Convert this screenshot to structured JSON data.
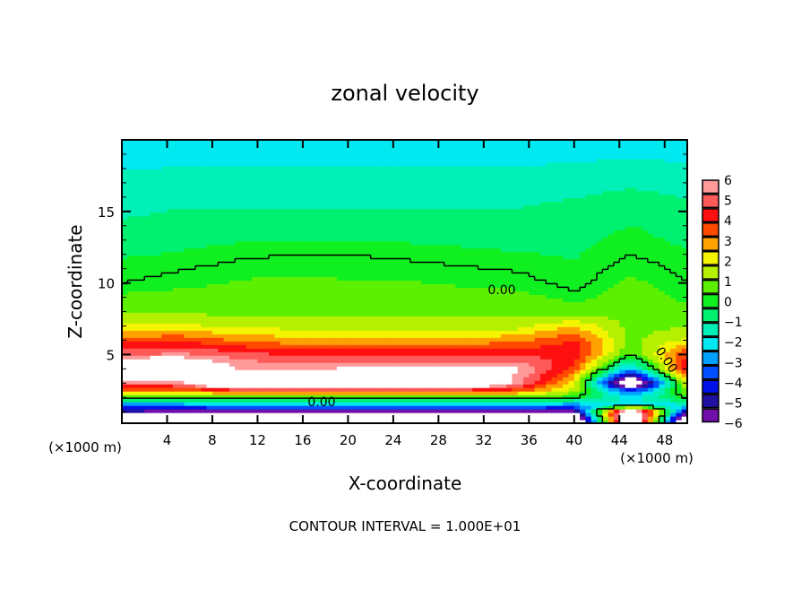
{
  "chart_data": {
    "type": "heatmap",
    "title": "zonal velocity",
    "xlabel": "X-coordinate",
    "ylabel": "Z-coordinate",
    "x_unit": "(×1000 m)",
    "y_unit": "(×1000 m)",
    "footer": "CONTOUR INTERVAL = 1.000E+01",
    "xlim": [
      0,
      50
    ],
    "ylim": [
      0.2,
      20
    ],
    "x_ticks": [
      "4",
      "8",
      "12",
      "16",
      "20",
      "24",
      "28",
      "32",
      "36",
      "40",
      "44",
      "48"
    ],
    "x_tick_values": [
      4,
      8,
      12,
      16,
      20,
      24,
      28,
      32,
      36,
      40,
      44,
      48
    ],
    "y_ticks": [
      "5",
      "10",
      "15"
    ],
    "y_tick_values": [
      5,
      10,
      15
    ],
    "colorbar": {
      "ticks": [
        "6",
        "5",
        "4",
        "3",
        "2",
        "1",
        "0",
        "−1",
        "−2",
        "−3",
        "−4",
        "−5",
        "−6"
      ],
      "range": [
        -6,
        6
      ],
      "colors": [
        "#ff9a9a",
        "#ff5a5a",
        "#ff1010",
        "#ff4a00",
        "#ffa200",
        "#f4f400",
        "#b4f000",
        "#5cf000",
        "#10f020",
        "#00f070",
        "#00f0b8",
        "#00e8f0",
        "#00a0ff",
        "#0050ff",
        "#0010e8",
        "#2010a0",
        "#7010a8"
      ],
      "out_of_range_color": "#ffffff"
    },
    "contour_labels": [
      "0.00",
      "0.00",
      "0.00"
    ],
    "grid_x": [
      0,
      5,
      10,
      15,
      20,
      25,
      30,
      35,
      40,
      45,
      50
    ],
    "grid_z": [
      20,
      15,
      12,
      10,
      8,
      7,
      6,
      5,
      4,
      3,
      2.5,
      2,
      1.5,
      1,
      0.5
    ],
    "values": [
      [
        -2.2,
        -2.2,
        -2.2,
        -2.2,
        -2.2,
        -2.2,
        -2.2,
        -2.2,
        -2.2,
        -2.2,
        -2.2
      ],
      [
        -1.2,
        -1,
        -1,
        -1,
        -1,
        -1,
        -1,
        -1,
        -0.8,
        -0.5,
        -0.8
      ],
      [
        -0.4,
        -0.3,
        -0.1,
        0,
        0,
        -0.1,
        -0.2,
        -0.3,
        -0.4,
        0,
        -0.3
      ],
      [
        0,
        0.2,
        0.4,
        0.5,
        0.4,
        0.4,
        0.3,
        0.2,
        -0.2,
        0.5,
        0
      ],
      [
        1,
        1,
        0.8,
        0.8,
        0.8,
        0.8,
        0.8,
        0.9,
        0.6,
        0.8,
        0.5
      ],
      [
        2,
        2,
        1.6,
        1.5,
        1.5,
        1.5,
        1.5,
        1.5,
        2.5,
        0.8,
        1
      ],
      [
        3.6,
        3.8,
        3.2,
        2.8,
        2.8,
        2.8,
        2.8,
        3,
        4,
        0.8,
        2
      ],
      [
        5.2,
        5.5,
        5,
        4.5,
        4.5,
        4.5,
        4.5,
        4.5,
        4.5,
        0.2,
        4
      ],
      [
        9,
        9,
        6,
        5.8,
        6.2,
        6.2,
        6.2,
        6.2,
        3.5,
        -3,
        4.5
      ],
      [
        5,
        5.5,
        9,
        9,
        9,
        9,
        9,
        5.5,
        2,
        -9,
        2
      ],
      [
        3,
        3,
        4,
        4,
        4,
        4,
        4,
        3.5,
        1.5,
        -4,
        1
      ],
      [
        0.2,
        0.3,
        0.5,
        0.5,
        0.5,
        0.5,
        0.5,
        0.6,
        0,
        -2,
        0
      ],
      [
        -3,
        -3,
        -2.5,
        -2.5,
        -2.5,
        -2.5,
        -2.5,
        -2.5,
        -3,
        -2,
        -2
      ],
      [
        -5.5,
        -6,
        -6,
        -6,
        -6,
        -6,
        -6,
        -6,
        -6,
        9,
        -5
      ],
      [
        -9,
        -9,
        -9,
        -9,
        -9,
        -9,
        -9,
        -9,
        -9,
        9,
        -9
      ]
    ],
    "grid": false
  }
}
